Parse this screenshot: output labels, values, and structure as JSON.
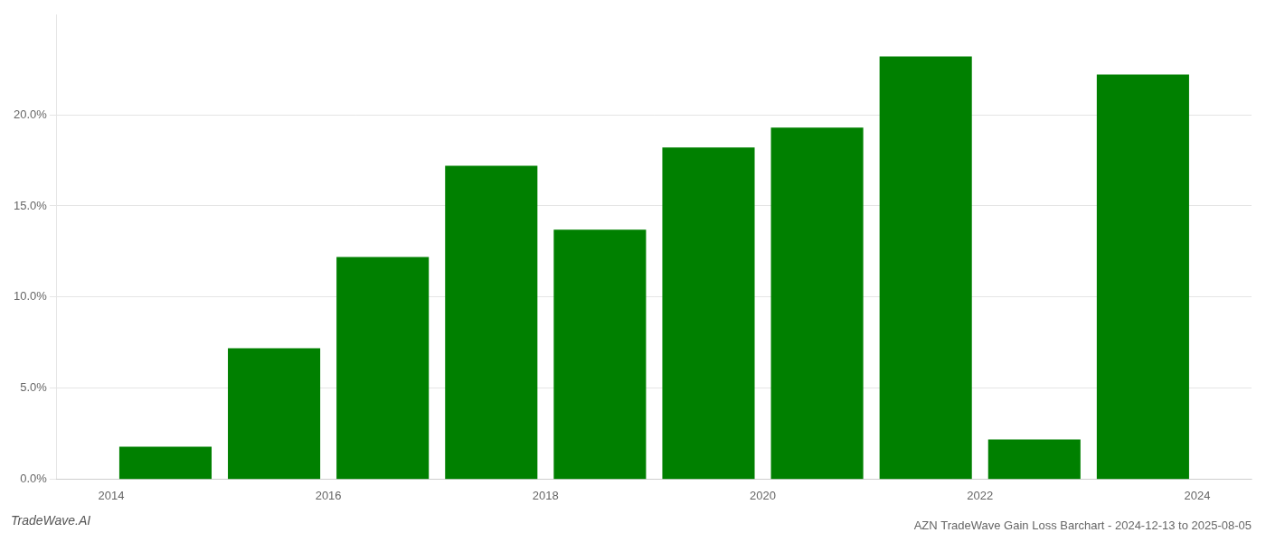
{
  "chart_data": {
    "type": "bar",
    "title": "AZN TradeWave Gain Loss Barchart - 2024-12-13 to 2025-08-05",
    "annotations": [
      "TradeWave.AI"
    ],
    "x": [
      2014.5,
      2015.5,
      2016.5,
      2017.5,
      2018.5,
      2019.5,
      2020.5,
      2021.5,
      2022.5,
      2023.5
    ],
    "values": [
      0.018,
      0.072,
      0.122,
      0.172,
      0.137,
      0.182,
      0.193,
      0.232,
      0.022,
      0.222
    ],
    "color": "#008000",
    "xlim": [
      2013.5,
      2024.5
    ],
    "xticks": [
      2014,
      2016,
      2018,
      2020,
      2022,
      2024
    ],
    "ylim": [
      0,
      0.255
    ],
    "yticks": [
      {
        "value": 0.0,
        "label": "0.0%"
      },
      {
        "value": 0.05,
        "label": "5.0%"
      },
      {
        "value": 0.1,
        "label": "10.0%"
      },
      {
        "value": 0.15,
        "label": "15.0%"
      },
      {
        "value": 0.2,
        "label": "20.0%"
      }
    ],
    "grid": true
  }
}
